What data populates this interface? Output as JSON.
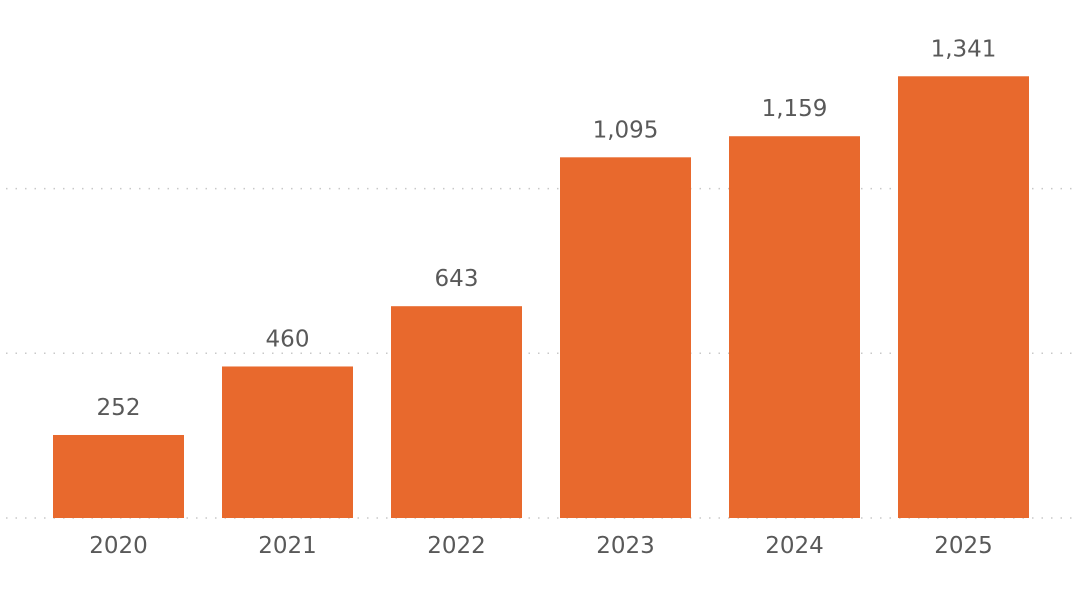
{
  "chart_data": {
    "type": "bar",
    "title": "",
    "xlabel": "",
    "ylabel": "",
    "categories": [
      "2020",
      "2021",
      "2022",
      "2023",
      "2024",
      "2025"
    ],
    "values": [
      252,
      460,
      643,
      1095,
      1159,
      1341
    ],
    "value_labels": [
      "252",
      "460",
      "643",
      "1,095",
      "1,159",
      "1,341"
    ],
    "ylim": [
      0,
      1400
    ],
    "gridlines": [
      0,
      500,
      1000
    ],
    "grid": true,
    "legend": "none",
    "bar_color": "#E8692D"
  }
}
